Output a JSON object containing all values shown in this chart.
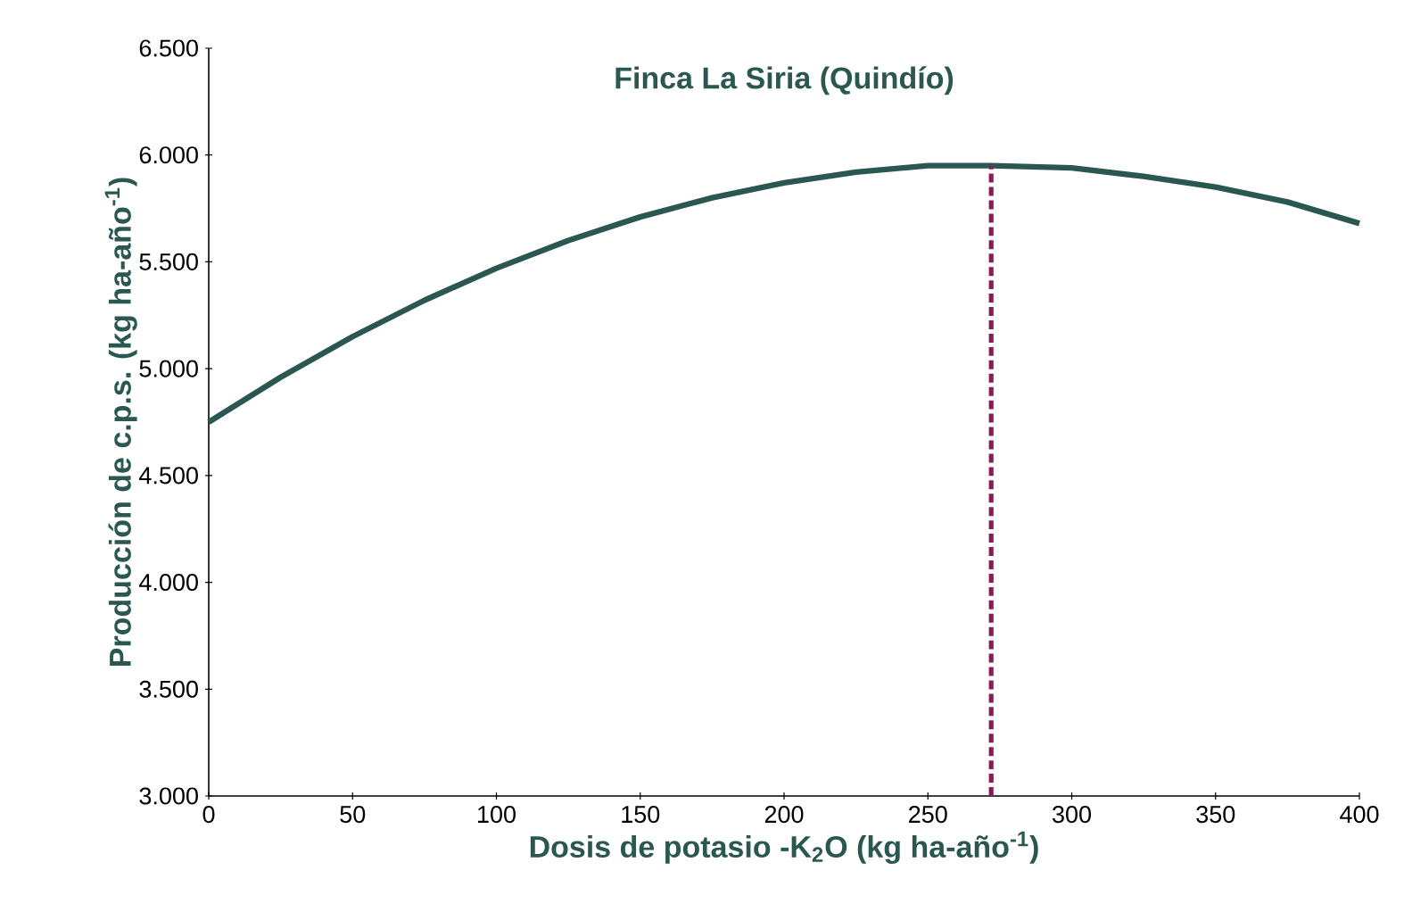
{
  "chart_data": {
    "type": "line",
    "title": "Finca La Siria (Quindío)",
    "xlabel": "Dosis de potasio -K$_{2}$O (kg ha-año$^{-1}$)",
    "ylabel": "Producción de c.p.s. (kg ha-año$^{-1}$)",
    "x": [
      0,
      25,
      50,
      75,
      100,
      125,
      150,
      175,
      200,
      225,
      250,
      272,
      300,
      325,
      350,
      375,
      400
    ],
    "series": [
      {
        "color": "#2a5750",
        "values": [
          4750,
          4960,
          5150,
          5320,
          5470,
          5600,
          5710,
          5800,
          5870,
          5920,
          5950,
          5950,
          5940,
          5900,
          5850,
          5780,
          5680
        ]
      }
    ],
    "xlim": [
      0,
      400
    ],
    "xticks": [
      0,
      50,
      100,
      150,
      200,
      250,
      300,
      350,
      400
    ],
    "ylim": [
      3000,
      6500
    ],
    "yticks": [
      {
        "value": 3000,
        "label": "3.000"
      },
      {
        "value": 3500,
        "label": "3.500"
      },
      {
        "value": 4000,
        "label": "4.000"
      },
      {
        "value": 4500,
        "label": "4.500"
      },
      {
        "value": 5000,
        "label": "5.000"
      },
      {
        "value": 5500,
        "label": "5.500"
      },
      {
        "value": 6000,
        "label": "6.000"
      },
      {
        "value": 6500,
        "label": "6.500"
      }
    ],
    "ref_lines": [
      {
        "axis": "x",
        "value": 272,
        "color": "#8b1a5a",
        "line_style": "dashed"
      }
    ],
    "grid": false,
    "marker": "none",
    "line_style": "solid"
  }
}
